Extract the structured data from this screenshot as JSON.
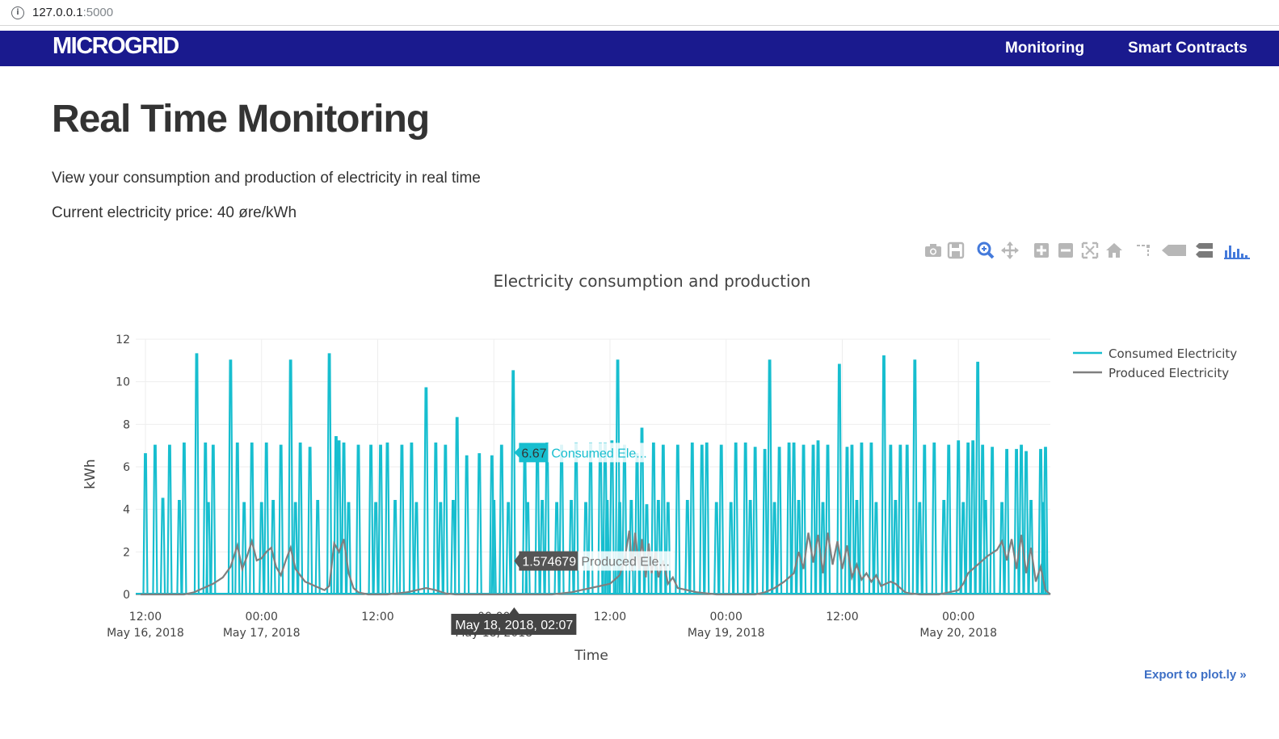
{
  "browser": {
    "url_host": "127.0.0.1",
    "url_port": ":5000"
  },
  "navbar": {
    "brand": "MICROGRID",
    "links": [
      "Monitoring",
      "Smart Contracts"
    ]
  },
  "page": {
    "title": "Real Time Monitoring",
    "subtitle": "View your consumption and production of electricity in real time",
    "price_line": "Current electricity price: 40 øre/kWh"
  },
  "modebar": {
    "icons": [
      "camera-icon",
      "save-icon",
      "zoom-icon",
      "pan-icon",
      "zoom-in-icon",
      "zoom-out-icon",
      "autoscale-icon",
      "reset-axes-icon",
      "spike-lines-icon",
      "hover-closest-icon",
      "hover-compare-icon",
      "plotly-logo-icon"
    ],
    "accent_color": "#447adb",
    "icon_color": "#b7b7b7"
  },
  "export_link": "Export to plot.ly »",
  "chart_data": {
    "type": "line",
    "title": "Electricity consumption and production",
    "xlabel": "Time",
    "ylabel": "kWh",
    "ylim": [
      0,
      12
    ],
    "y_ticks": [
      "0",
      "2",
      "4",
      "6",
      "8",
      "10",
      "12"
    ],
    "x_ticks": [
      {
        "line1": "12:00",
        "line2": "May 16, 2018"
      },
      {
        "line1": "00:00",
        "line2": "May 17, 2018"
      },
      {
        "line1": "12:00",
        "line2": ""
      },
      {
        "line1": "00:00",
        "line2": "May 18, 2018"
      },
      {
        "line1": "12:00",
        "line2": ""
      },
      {
        "line1": "00:00",
        "line2": "May 19, 2018"
      },
      {
        "line1": "12:00",
        "line2": ""
      },
      {
        "line1": "00:00",
        "line2": "May 20, 2018"
      }
    ],
    "x_range_hours": [
      -1,
      93.5
    ],
    "x_tick_hours": [
      0,
      12,
      24,
      36,
      48,
      60,
      72,
      84
    ],
    "grid": true,
    "legend_position": "top-right",
    "series": [
      {
        "name": "Consumed Electricity",
        "color": "#17becf",
        "spikes": [
          [
            0,
            6.6
          ],
          [
            1,
            7.0
          ],
          [
            2.5,
            7.0
          ],
          [
            4,
            7.1
          ],
          [
            5.3,
            11.3
          ],
          [
            6.2,
            7.1
          ],
          [
            7,
            7.0
          ],
          [
            8.8,
            11.0
          ],
          [
            9.5,
            7.1
          ],
          [
            11,
            7.1
          ],
          [
            12.5,
            7.1
          ],
          [
            14,
            7.0
          ],
          [
            15,
            11.0
          ],
          [
            16,
            7.1
          ],
          [
            17,
            6.9
          ],
          [
            19,
            11.3
          ],
          [
            19.7,
            7.4
          ],
          [
            20.5,
            7.1
          ],
          [
            22,
            7.0
          ],
          [
            23.3,
            7.0
          ],
          [
            24.3,
            7.0
          ],
          [
            25,
            7.1
          ],
          [
            26.5,
            7.0
          ],
          [
            27.5,
            7.1
          ],
          [
            29,
            9.7
          ],
          [
            30,
            7.1
          ],
          [
            31,
            7.0
          ],
          [
            32.2,
            8.3
          ],
          [
            33.2,
            6.5
          ],
          [
            34.5,
            6.6
          ],
          [
            35.8,
            6.5
          ],
          [
            36.8,
            7.0
          ],
          [
            38,
            10.5
          ],
          [
            39.2,
            6.5
          ],
          [
            40.5,
            7.0
          ],
          [
            41.5,
            7.1
          ],
          [
            43,
            7.0
          ],
          [
            44.5,
            7.1
          ],
          [
            46,
            7.1
          ],
          [
            47,
            7.1
          ],
          [
            48.2,
            7.2
          ],
          [
            49.5,
            7.0
          ],
          [
            50.8,
            6.6
          ],
          [
            52.5,
            7.1
          ],
          [
            53.5,
            7.0
          ],
          [
            55,
            7.0
          ],
          [
            56.5,
            7.1
          ],
          [
            58,
            7.1
          ],
          [
            59.5,
            7.0
          ],
          [
            61,
            7.1
          ],
          [
            62,
            7.1
          ],
          [
            63,
            6.9
          ],
          [
            64.5,
            11.0
          ],
          [
            65.5,
            6.9
          ],
          [
            66.5,
            7.1
          ],
          [
            68,
            7.0
          ],
          [
            69.5,
            7.2
          ],
          [
            70.5,
            7.0
          ],
          [
            71.7,
            10.8
          ],
          [
            72.5,
            6.9
          ],
          [
            74,
            7.1
          ],
          [
            75,
            7.1
          ],
          [
            76.3,
            11.2
          ],
          [
            77,
            7.0
          ],
          [
            78,
            7.0
          ],
          [
            79.5,
            11.0
          ],
          [
            80.5,
            7.0
          ],
          [
            81.5,
            7.1
          ],
          [
            83,
            7.0
          ],
          [
            84,
            7.2
          ],
          [
            85,
            7.1
          ],
          [
            86.5,
            7.0
          ],
          [
            87.5,
            6.9
          ],
          [
            89,
            6.8
          ],
          [
            90,
            6.8
          ],
          [
            91,
            6.7
          ],
          [
            92.5,
            6.8
          ],
          [
            93,
            6.9
          ],
          [
            47.5,
            7.1
          ],
          [
            48.8,
            11.0
          ],
          [
            51.3,
            7.8
          ],
          [
            57.5,
            7.0
          ],
          [
            64,
            6.8
          ],
          [
            67,
            7.1
          ],
          [
            69,
            7.0
          ],
          [
            73,
            7.0
          ],
          [
            78.7,
            7.0
          ],
          [
            85.5,
            7.2
          ],
          [
            86.0,
            10.9
          ],
          [
            90.5,
            7.0
          ]
        ],
        "mid_spikes": [
          [
            1.8,
            4.5
          ],
          [
            3.5,
            4.4
          ],
          [
            6.5,
            4.3
          ],
          [
            10.2,
            4.3
          ],
          [
            12,
            4.3
          ],
          [
            13.2,
            4.4
          ],
          [
            15.5,
            4.3
          ],
          [
            17.8,
            4.4
          ],
          [
            20,
            7.2
          ],
          [
            21,
            4.3
          ],
          [
            23.8,
            4.3
          ],
          [
            25.8,
            4.4
          ],
          [
            28,
            4.3
          ],
          [
            30.5,
            4.3
          ],
          [
            31.8,
            4.4
          ],
          [
            36,
            4.4
          ],
          [
            37.5,
            4.3
          ],
          [
            39.5,
            4.3
          ],
          [
            41,
            4.4
          ],
          [
            42.5,
            4.3
          ],
          [
            44,
            4.4
          ],
          [
            45.5,
            4.3
          ],
          [
            47.7,
            4.4
          ],
          [
            49,
            4.3
          ],
          [
            50.2,
            4.4
          ],
          [
            51.8,
            4.2
          ],
          [
            53,
            4.4
          ],
          [
            54,
            4.3
          ],
          [
            56,
            4.4
          ],
          [
            59,
            4.3
          ],
          [
            60.5,
            4.3
          ],
          [
            62.5,
            4.4
          ],
          [
            65,
            4.3
          ],
          [
            67.5,
            4.4
          ],
          [
            70,
            4.3
          ],
          [
            73.5,
            4.4
          ],
          [
            75.5,
            4.3
          ],
          [
            77.5,
            4.4
          ],
          [
            80,
            4.3
          ],
          [
            82.5,
            4.4
          ],
          [
            84.5,
            4.3
          ],
          [
            86.8,
            4.4
          ],
          [
            88.5,
            4.3
          ],
          [
            91.5,
            4.4
          ],
          [
            92.8,
            4.3
          ]
        ]
      },
      {
        "name": "Produced Electricity",
        "color": "#7f7f7f",
        "curve": [
          [
            -0.5,
            0
          ],
          [
            4,
            0
          ],
          [
            5,
            0.1
          ],
          [
            6,
            0.3
          ],
          [
            7,
            0.5
          ],
          [
            8,
            0.8
          ],
          [
            8.8,
            1.3
          ],
          [
            9.5,
            2.3
          ],
          [
            10,
            1.2
          ],
          [
            10.5,
            1.8
          ],
          [
            11,
            2.5
          ],
          [
            11.5,
            1.6
          ],
          [
            12,
            1.7
          ],
          [
            12.5,
            2.0
          ],
          [
            13,
            2.2
          ],
          [
            13.5,
            1.3
          ],
          [
            14,
            0.9
          ],
          [
            14.5,
            1.6
          ],
          [
            15,
            2.2
          ],
          [
            15.5,
            1.2
          ],
          [
            16,
            0.9
          ],
          [
            16.5,
            0.6
          ],
          [
            17,
            0.5
          ],
          [
            17.5,
            0.4
          ],
          [
            18,
            0.3
          ],
          [
            18.5,
            0.2
          ],
          [
            19,
            0.4
          ],
          [
            19.5,
            2.4
          ],
          [
            20,
            2.0
          ],
          [
            20.5,
            2.6
          ],
          [
            21,
            1.0
          ],
          [
            21.5,
            0.3
          ],
          [
            22,
            0.1
          ],
          [
            23,
            0
          ],
          [
            24,
            0
          ],
          [
            25,
            0
          ],
          [
            26,
            0.05
          ],
          [
            27,
            0.1
          ],
          [
            28,
            0.2
          ],
          [
            29,
            0.3
          ],
          [
            30,
            0.2
          ],
          [
            31,
            0.05
          ],
          [
            32,
            0
          ],
          [
            40,
            0
          ],
          [
            42,
            0
          ],
          [
            43,
            0.05
          ],
          [
            44,
            0.1
          ],
          [
            45,
            0.2
          ],
          [
            46,
            0.3
          ],
          [
            47,
            0.4
          ],
          [
            48,
            0.5
          ],
          [
            49,
            0.9
          ],
          [
            49.5,
            1.6
          ],
          [
            50,
            3.0
          ],
          [
            50.3,
            1.1
          ],
          [
            50.6,
            2.9
          ],
          [
            51,
            1.2
          ],
          [
            51.3,
            2.6
          ],
          [
            51.7,
            0.8
          ],
          [
            52,
            2.4
          ],
          [
            52.3,
            1.0
          ],
          [
            52.7,
            2.0
          ],
          [
            53,
            0.8
          ],
          [
            53.5,
            1.6
          ],
          [
            54,
            0.5
          ],
          [
            54.5,
            0.8
          ],
          [
            55,
            0.3
          ],
          [
            56,
            0.2
          ],
          [
            57,
            0.1
          ],
          [
            58,
            0.05
          ],
          [
            59,
            0
          ],
          [
            63,
            0
          ],
          [
            64,
            0.1
          ],
          [
            65,
            0.3
          ],
          [
            66,
            0.6
          ],
          [
            67,
            1.0
          ],
          [
            67.5,
            2.0
          ],
          [
            68,
            1.2
          ],
          [
            68.5,
            2.9
          ],
          [
            69,
            1.5
          ],
          [
            69.5,
            2.8
          ],
          [
            70,
            1.0
          ],
          [
            70.5,
            2.9
          ],
          [
            71,
            1.4
          ],
          [
            71.5,
            2.5
          ],
          [
            72,
            1.2
          ],
          [
            72.5,
            2.3
          ],
          [
            73,
            0.8
          ],
          [
            73.5,
            1.4
          ],
          [
            74,
            0.7
          ],
          [
            74.5,
            1.0
          ],
          [
            75,
            0.6
          ],
          [
            75.5,
            0.9
          ],
          [
            76,
            0.4
          ],
          [
            76.5,
            0.5
          ],
          [
            77,
            0.6
          ],
          [
            77.5,
            0.5
          ],
          [
            78,
            0.3
          ],
          [
            78.5,
            0.1
          ],
          [
            79,
            0.05
          ],
          [
            80,
            0
          ],
          [
            82,
            0
          ],
          [
            83,
            0.1
          ],
          [
            84,
            0.2
          ],
          [
            84.5,
            0.5
          ],
          [
            85,
            1.0
          ],
          [
            86,
            1.4
          ],
          [
            87,
            1.8
          ],
          [
            88,
            2.1
          ],
          [
            88.5,
            2.5
          ],
          [
            89,
            1.6
          ],
          [
            89.5,
            2.6
          ],
          [
            90,
            1.2
          ],
          [
            90.5,
            2.8
          ],
          [
            91,
            1.0
          ],
          [
            91.5,
            2.2
          ],
          [
            92,
            0.6
          ],
          [
            92.5,
            1.3
          ],
          [
            93,
            0.2
          ],
          [
            93.5,
            0
          ]
        ]
      }
    ],
    "hover": {
      "consumed_value": "6.67",
      "consumed_label": "Consumed Ele...",
      "produced_value": "1.574679",
      "produced_label": "Produced Ele...",
      "x_label": "May 18, 2018, 02:07",
      "x_hours": 38.1,
      "consumed_y": 6.67,
      "produced_y": 1.574679
    }
  }
}
